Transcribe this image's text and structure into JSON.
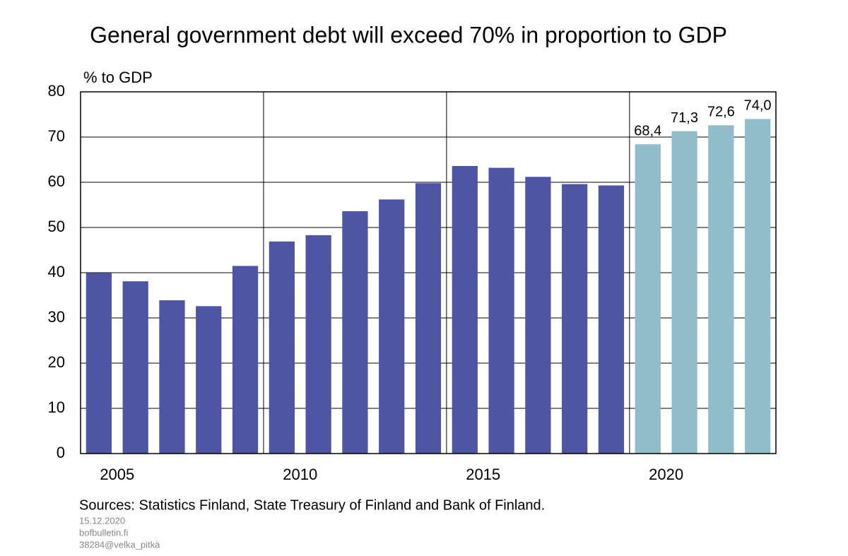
{
  "chart_data": {
    "type": "bar",
    "title": "General government debt will exceed 70% in proportion to GDP",
    "y_axis_label": "% to GDP",
    "categories": [
      "2005",
      null,
      null,
      null,
      null,
      "2010",
      null,
      null,
      null,
      null,
      "2015",
      null,
      null,
      null,
      null,
      "2020",
      null,
      null,
      null
    ],
    "values": [
      39.9,
      38.1,
      33.9,
      32.6,
      41.5,
      46.9,
      48.3,
      53.6,
      56.2,
      59.8,
      63.6,
      63.2,
      61.2,
      59.6,
      59.3,
      68.4,
      71.3,
      72.6,
      74.0
    ],
    "value_labels": [
      null,
      null,
      null,
      null,
      null,
      null,
      null,
      null,
      null,
      null,
      null,
      null,
      null,
      null,
      null,
      "68,4",
      "71,3",
      "72,6",
      "74,0"
    ],
    "colors": [
      "#4f55a5",
      "#4f55a5",
      "#4f55a5",
      "#4f55a5",
      "#4f55a5",
      "#4f55a5",
      "#4f55a5",
      "#4f55a5",
      "#4f55a5",
      "#4f55a5",
      "#4f55a5",
      "#4f55a5",
      "#4f55a5",
      "#4f55a5",
      "#4f55a5",
      "#92bcc9",
      "#92bcc9",
      "#92bcc9",
      "#92bcc9"
    ],
    "ylim": [
      0,
      80
    ],
    "yticks": [
      0,
      10,
      20,
      30,
      40,
      50,
      60,
      70,
      80
    ],
    "grid": true,
    "sources": "Sources: Statistics Finland, State Treasury of Finland and Bank of Finland.",
    "date": "15.12.2020",
    "site": "bofbulletin.fi",
    "chart_id": "38284@velka_pitkä"
  }
}
